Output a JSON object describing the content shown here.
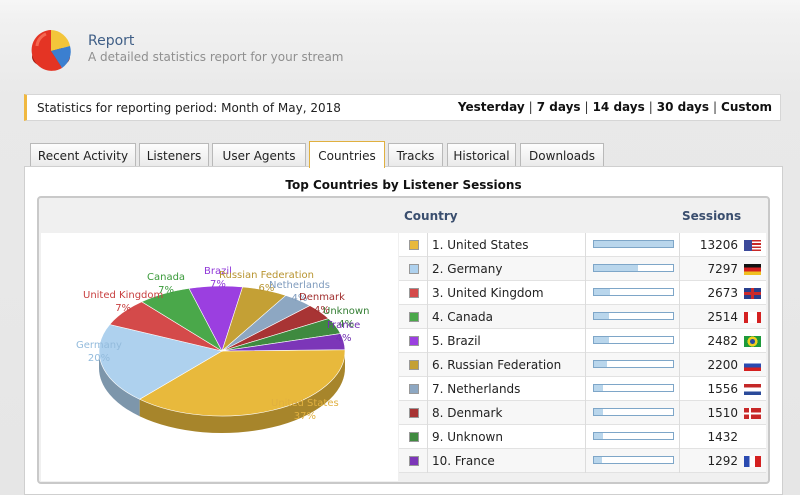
{
  "header": {
    "title": "Report",
    "subtitle": "A detailed statistics report for your stream",
    "logo_icon": "pie-chart-logo-icon"
  },
  "period": {
    "label": "Statistics for reporting period: Month of May, 2018",
    "links": [
      "Yesterday",
      "7 days",
      "14 days",
      "30 days",
      "Custom"
    ]
  },
  "tabs": [
    "Recent Activity",
    "Listeners",
    "User Agents",
    "Countries",
    "Tracks",
    "Historical",
    "Downloads"
  ],
  "active_tab": "Countries",
  "report": {
    "title": "Top Countries by Listener Sessions",
    "col_country": "Country",
    "col_sessions": "Sessions"
  },
  "countries": [
    {
      "label": "1. United States",
      "sessions": "13206",
      "color": "#e8b93c",
      "flag": "us-flag-icon",
      "share": 1.0
    },
    {
      "label": "2. Germany",
      "sessions": "7297",
      "color": "#aed1ee",
      "flag": "de-flag-icon",
      "share": 0.553
    },
    {
      "label": "3. United Kingdom",
      "sessions": "2673",
      "color": "#d44a4a",
      "flag": "gb-flag-icon",
      "share": 0.202
    },
    {
      "label": "4. Canada",
      "sessions": "2514",
      "color": "#4aa84a",
      "flag": "ca-flag-icon",
      "share": 0.19
    },
    {
      "label": "5. Brazil",
      "sessions": "2482",
      "color": "#9b3fe0",
      "flag": "br-flag-icon",
      "share": 0.188
    },
    {
      "label": "6. Russian Federation",
      "sessions": "2200",
      "color": "#c4a035",
      "flag": "ru-flag-icon",
      "share": 0.167
    },
    {
      "label": "7. Netherlands",
      "sessions": "1556",
      "color": "#8da7c2",
      "flag": "nl-flag-icon",
      "share": 0.118
    },
    {
      "label": "8. Denmark",
      "sessions": "1510",
      "color": "#a83434",
      "flag": "dk-flag-icon",
      "share": 0.114
    },
    {
      "label": "9. Unknown",
      "sessions": "1432",
      "color": "#3f8a3f",
      "flag": "",
      "share": 0.108
    },
    {
      "label": "10. France",
      "sessions": "1292",
      "color": "#7c36b8",
      "flag": "fr-flag-icon",
      "share": 0.098
    }
  ],
  "chart_data": {
    "type": "pie",
    "title": "",
    "categories": [
      "United States",
      "Germany",
      "United Kingdom",
      "Canada",
      "Brazil",
      "Russian Federation",
      "Netherlands",
      "Denmark",
      "Unknown",
      "France"
    ],
    "values": [
      37,
      20,
      7,
      7,
      7,
      6,
      4,
      4,
      4,
      4
    ],
    "labels": [
      {
        "name": "United States",
        "pct": "37%",
        "color": "#e0b040"
      },
      {
        "name": "Germany",
        "pct": "20%",
        "color": "#93bbdc"
      },
      {
        "name": "United Kingdom",
        "pct": "7%",
        "color": "#c84040"
      },
      {
        "name": "Canada",
        "pct": "7%",
        "color": "#3a9a3a"
      },
      {
        "name": "Brazil",
        "pct": "7%",
        "color": "#9038d8"
      },
      {
        "name": "Russian Federation",
        "pct": "6%",
        "color": "#b89430"
      },
      {
        "name": "Netherlands",
        "pct": "4%",
        "color": "#7f9bbd"
      },
      {
        "name": "Denmark",
        "pct": "4%",
        "color": "#a02f2f"
      },
      {
        "name": "Unknown",
        "pct": "4%",
        "color": "#347f34"
      },
      {
        "name": "France",
        "pct": "4%",
        "color": "#7030b0"
      }
    ]
  }
}
